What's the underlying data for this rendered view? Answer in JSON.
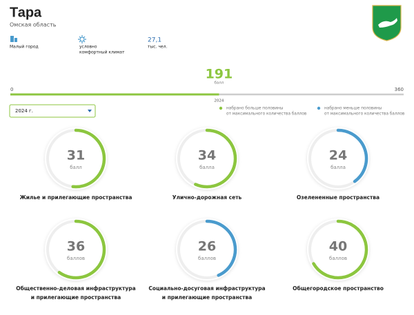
{
  "header": {
    "title": "Тара",
    "region": "Омская область"
  },
  "stats": [
    {
      "lines": [
        "Малый город"
      ]
    },
    {
      "lines": [
        "условно",
        "комфортный климат"
      ]
    },
    {
      "value": "27,1",
      "lines": [
        "тыс. чел."
      ]
    }
  ],
  "total": {
    "value": 191,
    "unit": "балл",
    "min": 0,
    "max": 360,
    "year": "2024",
    "color": "#8cc63f"
  },
  "filter": {
    "selected": "2024 г."
  },
  "legend": [
    {
      "color": "#8cc63f",
      "lines": [
        "набрано больше половины",
        "от максимального количества баллов"
      ]
    },
    {
      "color": "#4a9bcd",
      "lines": [
        "набрано меньше половины",
        "от максимального количества баллов"
      ]
    }
  ],
  "categories": [
    {
      "value": 31,
      "unit": "балл",
      "color": "#8cc63f",
      "name": [
        "Жилье и прилегающие пространства"
      ]
    },
    {
      "value": 34,
      "unit": "балла",
      "color": "#8cc63f",
      "name": [
        "Улично-дорожная сеть"
      ]
    },
    {
      "value": 24,
      "unit": "балла",
      "color": "#4a9bcd",
      "name": [
        "Озелененные пространства"
      ]
    },
    {
      "value": 36,
      "unit": "баллов",
      "color": "#8cc63f",
      "name": [
        "Общественно-деловая инфраструктура",
        "и прилегающие пространства"
      ]
    },
    {
      "value": 26,
      "unit": "баллов",
      "color": "#4a9bcd",
      "name": [
        "Социально-досуговая инфраструктура",
        "и прилегающие пространства"
      ]
    },
    {
      "value": 40,
      "unit": "баллов",
      "color": "#8cc63f",
      "name": [
        "Общегородское пространство"
      ]
    }
  ]
}
